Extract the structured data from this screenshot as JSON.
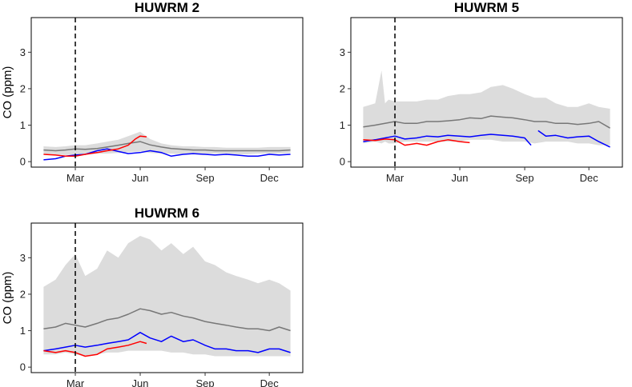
{
  "chart_data": [
    {
      "type": "line",
      "title": "HUWRM 2",
      "ylabel": "CO  (ppm)",
      "xlabel": "",
      "x_range": [
        "Jan 15",
        "Dec 31"
      ],
      "ylim": [
        -0.15,
        3.95
      ],
      "yticks": [
        0,
        1,
        2,
        3
      ],
      "xticks": [
        "Mar",
        "Jun",
        "Sep",
        "Dec"
      ],
      "xtick_dates": [
        "Mar 1",
        "Jun 1",
        "Sep 1",
        "Dec 1"
      ],
      "vline": "Mar 1",
      "grid": false,
      "band": {
        "x": [
          "Jan 15",
          "Feb 1",
          "Feb 15",
          "Mar 1",
          "Mar 15",
          "Apr 1",
          "Apr 15",
          "May 1",
          "May 15",
          "Jun 1",
          "Jun 15",
          "Jul 1",
          "Jul 15",
          "Aug 1",
          "Aug 15",
          "Sep 1",
          "Sep 15",
          "Oct 1",
          "Oct 15",
          "Nov 1",
          "Nov 15",
          "Dec 1",
          "Dec 15",
          "Dec 31"
        ],
        "low": [
          0.22,
          0.2,
          0.18,
          0.2,
          0.2,
          0.22,
          0.22,
          0.24,
          0.26,
          0.28,
          0.24,
          0.22,
          0.22,
          0.2,
          0.2,
          0.22,
          0.22,
          0.22,
          0.2,
          0.2,
          0.22,
          0.22,
          0.22,
          0.24
        ],
        "high": [
          0.42,
          0.4,
          0.42,
          0.45,
          0.45,
          0.5,
          0.55,
          0.6,
          0.7,
          0.82,
          0.62,
          0.5,
          0.45,
          0.42,
          0.42,
          0.4,
          0.4,
          0.38,
          0.38,
          0.38,
          0.38,
          0.4,
          0.4,
          0.4
        ]
      },
      "series": [
        {
          "color": "#777777",
          "x": [
            "Jan 15",
            "Feb 1",
            "Feb 15",
            "Mar 1",
            "Mar 15",
            "Apr 1",
            "Apr 15",
            "May 1",
            "May 15",
            "Jun 1",
            "Jun 15",
            "Jul 1",
            "Jul 15",
            "Aug 1",
            "Aug 15",
            "Sep 1",
            "Sep 15",
            "Oct 1",
            "Oct 15",
            "Nov 1",
            "Nov 15",
            "Dec 1",
            "Dec 15",
            "Dec 31"
          ],
          "values": [
            0.32,
            0.3,
            0.32,
            0.35,
            0.34,
            0.36,
            0.4,
            0.45,
            0.5,
            0.55,
            0.46,
            0.4,
            0.36,
            0.34,
            0.32,
            0.32,
            0.3,
            0.3,
            0.3,
            0.3,
            0.3,
            0.3,
            0.3,
            0.32
          ]
        },
        {
          "color": "#0000ff",
          "x": [
            "Jan 15",
            "Feb 1",
            "Feb 15",
            "Mar 1",
            "Mar 15",
            "Apr 1",
            "Apr 15",
            "May 1",
            "May 15",
            "Jun 1",
            "Jun 15",
            "Jul 1",
            "Jul 15",
            "Aug 1",
            "Aug 15",
            "Sep 1",
            "Sep 15",
            "Oct 1",
            "Oct 15",
            "Nov 1",
            "Nov 15",
            "Dec 1",
            "Dec 15",
            "Dec 31"
          ],
          "values": [
            0.05,
            0.08,
            0.15,
            0.18,
            0.2,
            0.3,
            0.35,
            0.28,
            0.22,
            0.25,
            0.3,
            0.25,
            0.15,
            0.2,
            0.22,
            0.2,
            0.18,
            0.2,
            0.18,
            0.15,
            0.15,
            0.2,
            0.18,
            0.2
          ]
        },
        {
          "color": "#ff0000",
          "x": [
            "Jan 15",
            "Feb 1",
            "Feb 15",
            "Mar 1",
            "Mar 15",
            "Apr 1",
            "Apr 15",
            "May 1",
            "May 15",
            "May 25",
            "Jun 1",
            "Jun 10"
          ],
          "values": [
            0.2,
            0.18,
            0.15,
            0.15,
            0.2,
            0.25,
            0.3,
            0.35,
            0.45,
            0.62,
            0.7,
            0.68
          ]
        }
      ]
    },
    {
      "type": "line",
      "title": "HUWRM 5",
      "ylabel": "",
      "xlabel": "",
      "x_range": [
        "Jan 15",
        "Dec 31"
      ],
      "ylim": [
        -0.15,
        3.95
      ],
      "yticks": [
        0,
        1,
        2,
        3
      ],
      "xticks": [
        "Mar",
        "Jun",
        "Sep",
        "Dec"
      ],
      "xtick_dates": [
        "Mar 1",
        "Jun 1",
        "Sep 1",
        "Dec 1"
      ],
      "vline": "Mar 1",
      "grid": false,
      "band": {
        "x": [
          "Jan 15",
          "Feb 1",
          "Feb 10",
          "Feb 15",
          "Feb 20",
          "Mar 1",
          "Mar 15",
          "Apr 1",
          "Apr 15",
          "May 1",
          "May 15",
          "Jun 1",
          "Jun 15",
          "Jul 1",
          "Jul 15",
          "Aug 1",
          "Aug 15",
          "Sep 1",
          "Sep 15",
          "Oct 1",
          "Oct 15",
          "Nov 1",
          "Nov 15",
          "Dec 1",
          "Dec 15",
          "Dec 31"
        ],
        "low": [
          0.5,
          0.55,
          0.5,
          0.55,
          0.5,
          0.5,
          0.55,
          0.55,
          0.55,
          0.55,
          0.55,
          0.55,
          0.6,
          0.6,
          0.6,
          0.55,
          0.55,
          0.55,
          0.5,
          0.55,
          0.55,
          0.55,
          0.5,
          0.5,
          0.45,
          0.45
        ],
        "high": [
          1.5,
          1.6,
          2.5,
          1.6,
          1.7,
          1.65,
          1.65,
          1.65,
          1.7,
          1.7,
          1.8,
          1.85,
          1.85,
          1.9,
          2.05,
          2.1,
          2.0,
          1.85,
          1.75,
          1.75,
          1.6,
          1.5,
          1.5,
          1.6,
          1.5,
          1.45
        ]
      },
      "series": [
        {
          "color": "#777777",
          "x": [
            "Jan 15",
            "Feb 1",
            "Feb 15",
            "Mar 1",
            "Mar 15",
            "Apr 1",
            "Apr 15",
            "May 1",
            "May 15",
            "Jun 1",
            "Jun 15",
            "Jul 1",
            "Jul 15",
            "Aug 1",
            "Aug 15",
            "Sep 1",
            "Sep 15",
            "Oct 1",
            "Oct 15",
            "Nov 1",
            "Nov 15",
            "Dec 1",
            "Dec 15",
            "Dec 31"
          ],
          "values": [
            0.95,
            1.0,
            1.05,
            1.1,
            1.05,
            1.05,
            1.1,
            1.1,
            1.12,
            1.15,
            1.2,
            1.18,
            1.25,
            1.22,
            1.2,
            1.15,
            1.1,
            1.1,
            1.05,
            1.05,
            1.02,
            1.05,
            1.1,
            0.92
          ]
        },
        {
          "color": "#0000ff",
          "x": [
            "Jan 15",
            "Feb 1",
            "Feb 15",
            "Mar 1",
            "Mar 15",
            "Apr 1",
            "Apr 15",
            "May 1",
            "May 15",
            "Jun 1",
            "Jun 15",
            "Jul 1",
            "Jul 15",
            "Aug 1",
            "Aug 15",
            "Sep 1",
            "Sep 10"
          ],
          "values": [
            0.55,
            0.6,
            0.65,
            0.7,
            0.62,
            0.65,
            0.7,
            0.68,
            0.72,
            0.7,
            0.68,
            0.72,
            0.75,
            0.72,
            0.7,
            0.65,
            0.45
          ]
        },
        {
          "color": "#0000ff",
          "x": [
            "Sep 20",
            "Oct 1",
            "Oct 15",
            "Nov 1",
            "Nov 15",
            "Dec 1",
            "Dec 15",
            "Dec 31"
          ],
          "values": [
            0.85,
            0.7,
            0.72,
            0.65,
            0.68,
            0.7,
            0.55,
            0.4
          ]
        },
        {
          "color": "#ff0000",
          "x": [
            "Jan 15",
            "Feb 1",
            "Feb 15",
            "Mar 1",
            "Mar 15",
            "Apr 1",
            "Apr 15",
            "May 1",
            "May 15",
            "Jun 1",
            "Jun 15"
          ],
          "values": [
            0.6,
            0.58,
            0.62,
            0.6,
            0.45,
            0.5,
            0.45,
            0.55,
            0.6,
            0.55,
            0.52
          ]
        }
      ]
    },
    {
      "type": "line",
      "title": "HUWRM 6",
      "ylabel": "CO  (ppm)",
      "xlabel": "",
      "x_range": [
        "Jan 15",
        "Dec 31"
      ],
      "ylim": [
        -0.15,
        3.95
      ],
      "yticks": [
        0,
        1,
        2,
        3
      ],
      "xticks": [
        "Mar",
        "Jun",
        "Sep",
        "Dec"
      ],
      "xtick_dates": [
        "Mar 1",
        "Jun 1",
        "Sep 1",
        "Dec 1"
      ],
      "vline": "Mar 1",
      "grid": false,
      "band": {
        "x": [
          "Jan 15",
          "Feb 1",
          "Feb 15",
          "Mar 1",
          "Mar 15",
          "Apr 1",
          "Apr 15",
          "May 1",
          "May 15",
          "Jun 1",
          "Jun 15",
          "Jul 1",
          "Jul 15",
          "Aug 1",
          "Aug 15",
          "Sep 1",
          "Sep 15",
          "Oct 1",
          "Oct 15",
          "Nov 1",
          "Nov 15",
          "Dec 1",
          "Dec 15",
          "Dec 31"
        ],
        "low": [
          0.35,
          0.35,
          0.4,
          0.35,
          0.3,
          0.35,
          0.4,
          0.4,
          0.45,
          0.45,
          0.45,
          0.45,
          0.4,
          0.4,
          0.35,
          0.35,
          0.3,
          0.3,
          0.3,
          0.3,
          0.3,
          0.3,
          0.3,
          0.3
        ],
        "high": [
          2.2,
          2.4,
          2.8,
          3.1,
          2.5,
          2.7,
          3.2,
          3.0,
          3.4,
          3.6,
          3.5,
          3.2,
          3.4,
          3.1,
          3.3,
          2.9,
          2.8,
          2.6,
          2.5,
          2.4,
          2.3,
          2.4,
          2.3,
          2.1
        ]
      },
      "series": [
        {
          "color": "#777777",
          "x": [
            "Jan 15",
            "Feb 1",
            "Feb 15",
            "Mar 1",
            "Mar 15",
            "Apr 1",
            "Apr 15",
            "May 1",
            "May 15",
            "Jun 1",
            "Jun 15",
            "Jul 1",
            "Jul 15",
            "Aug 1",
            "Aug 15",
            "Sep 1",
            "Sep 15",
            "Oct 1",
            "Oct 15",
            "Nov 1",
            "Nov 15",
            "Dec 1",
            "Dec 15",
            "Dec 31"
          ],
          "values": [
            1.05,
            1.1,
            1.2,
            1.15,
            1.1,
            1.2,
            1.3,
            1.35,
            1.45,
            1.6,
            1.55,
            1.45,
            1.5,
            1.4,
            1.35,
            1.25,
            1.2,
            1.15,
            1.1,
            1.05,
            1.05,
            1.0,
            1.1,
            1.0
          ]
        },
        {
          "color": "#0000ff",
          "x": [
            "Jan 15",
            "Feb 1",
            "Feb 15",
            "Mar 1",
            "Mar 15",
            "Apr 1",
            "Apr 15",
            "May 1",
            "May 15",
            "Jun 1",
            "Jun 15",
            "Jul 1",
            "Jul 15",
            "Aug 1",
            "Aug 15",
            "Sep 1",
            "Sep 15",
            "Oct 1",
            "Oct 15",
            "Nov 1",
            "Nov 15",
            "Dec 1",
            "Dec 15",
            "Dec 31"
          ],
          "values": [
            0.45,
            0.5,
            0.55,
            0.6,
            0.55,
            0.6,
            0.65,
            0.7,
            0.75,
            0.95,
            0.8,
            0.7,
            0.85,
            0.7,
            0.75,
            0.6,
            0.5,
            0.5,
            0.45,
            0.45,
            0.4,
            0.5,
            0.5,
            0.4
          ]
        },
        {
          "color": "#ff0000",
          "x": [
            "Jan 15",
            "Feb 1",
            "Feb 15",
            "Mar 1",
            "Mar 15",
            "Apr 1",
            "Apr 15",
            "May 1",
            "May 15",
            "Jun 1",
            "Jun 10"
          ],
          "values": [
            0.45,
            0.4,
            0.45,
            0.4,
            0.3,
            0.35,
            0.5,
            0.55,
            0.6,
            0.7,
            0.65
          ]
        }
      ]
    }
  ]
}
